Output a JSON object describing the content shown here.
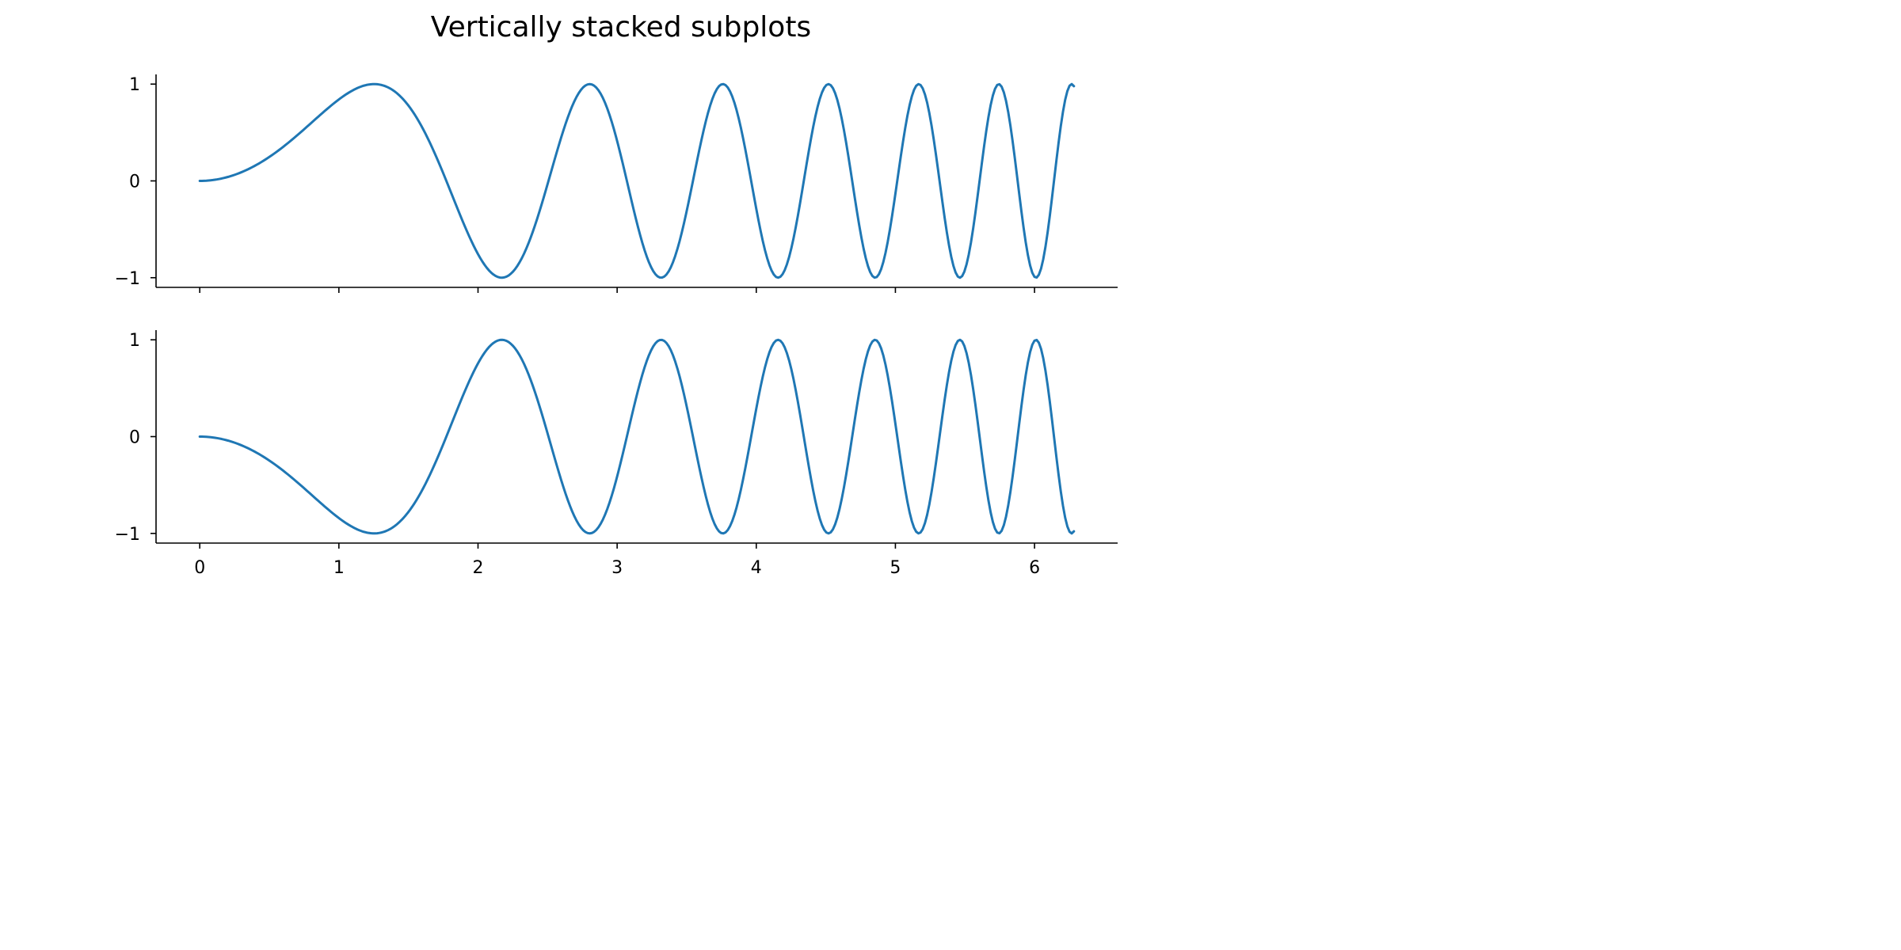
{
  "figure": {
    "title": "Vertically stacked subplots"
  },
  "colors": {
    "line": "#1f77b4",
    "axis": "#000000",
    "background": "#ffffff"
  },
  "chart_data": [
    {
      "type": "line",
      "function": "sin(x^2)",
      "x_range": [
        0,
        6.2832
      ],
      "samples": 400,
      "xlim": [
        -0.3142,
        6.5973
      ],
      "ylim": [
        -1.1,
        1.1
      ],
      "xticks": [
        0,
        1,
        2,
        3,
        4,
        5,
        6
      ],
      "xtick_labels_visible": false,
      "yticks": [
        -1,
        0,
        1
      ],
      "ytick_labels": [
        "−1",
        "0",
        "1"
      ],
      "spines": [
        "left",
        "bottom"
      ],
      "grid": false
    },
    {
      "type": "line",
      "function": "-sin(x^2)",
      "x_range": [
        0,
        6.2832
      ],
      "samples": 400,
      "xlim": [
        -0.3142,
        6.5973
      ],
      "ylim": [
        -1.1,
        1.1
      ],
      "xticks": [
        0,
        1,
        2,
        3,
        4,
        5,
        6
      ],
      "xtick_labels": [
        "0",
        "1",
        "2",
        "3",
        "4",
        "5",
        "6"
      ],
      "yticks": [
        -1,
        0,
        1
      ],
      "ytick_labels": [
        "−1",
        "0",
        "1"
      ],
      "spines": [
        "left",
        "bottom"
      ],
      "grid": false
    }
  ]
}
